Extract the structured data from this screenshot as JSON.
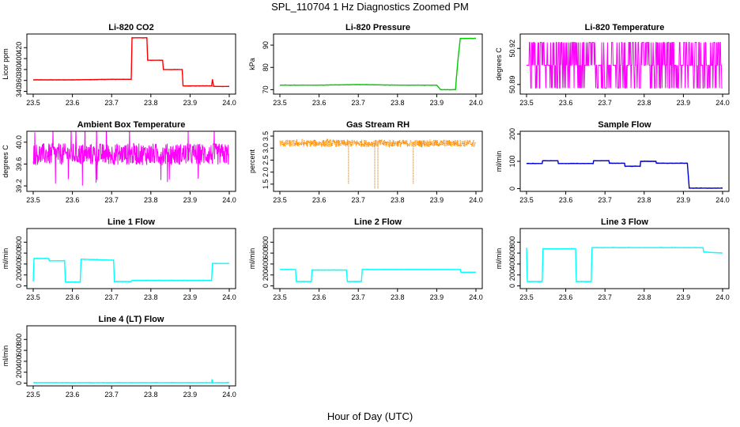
{
  "page": {
    "title": "SPL_110704  1 Hz Diagnostics Zoomed PM",
    "xlabel": "Hour of Day (UTC)"
  },
  "colors": {
    "red": "#ff0000",
    "green": "#00cc00",
    "magenta": "#ff00ff",
    "orange": "#ff8c00",
    "blue": "#0000cc",
    "cyan": "#00ffff"
  },
  "chart_data": [
    {
      "id": "co2",
      "type": "line",
      "title": "Li-820 CO2",
      "ylabel": "Licor ppm",
      "color": "red",
      "xlim": [
        23.5,
        24.0
      ],
      "ylim": [
        335,
        445
      ],
      "yticks": [
        "340",
        "360",
        "380",
        "400",
        "420"
      ],
      "ytick_values": [
        340,
        360,
        380,
        400,
        420
      ],
      "xticks": [
        "23.5",
        "23.6",
        "23.7",
        "23.8",
        "23.9",
        "24.0"
      ],
      "series": [
        {
          "x": [
            23.5,
            23.6,
            23.7,
            23.75,
            23.752,
            23.79,
            23.792,
            23.83,
            23.832,
            23.88,
            23.882,
            23.955,
            23.957,
            23.96,
            23.962,
            24.0
          ],
          "y": [
            361,
            361,
            362,
            362,
            438,
            438,
            397,
            397,
            380,
            380,
            350,
            350,
            362,
            350,
            349,
            349
          ]
        }
      ]
    },
    {
      "id": "pressure",
      "type": "line",
      "title": "Li-820 Pressure",
      "ylabel": "kPa",
      "color": "green",
      "xlim": [
        23.5,
        24.0
      ],
      "ylim": [
        68,
        95
      ],
      "yticks": [
        "70",
        "80",
        "90"
      ],
      "ytick_values": [
        70,
        80,
        90
      ],
      "xticks": [
        "23.5",
        "23.6",
        "23.7",
        "23.8",
        "23.9",
        "24.0"
      ],
      "series": [
        {
          "x": [
            23.5,
            23.6,
            23.7,
            23.8,
            23.9,
            23.91,
            23.912,
            23.948,
            23.95,
            23.955,
            23.96,
            23.97,
            24.0
          ],
          "y": [
            72,
            72,
            72.3,
            72,
            72,
            70,
            70,
            70,
            75,
            85,
            93,
            93,
            93
          ]
        }
      ]
    },
    {
      "id": "licor_temp",
      "type": "line",
      "title": "Li-820 Temperature",
      "ylabel": "degrees C",
      "color": "magenta",
      "xlim": [
        23.5,
        24.0
      ],
      "ylim": [
        50.882,
        50.932
      ],
      "yticks": [
        "50.89",
        "50.92"
      ],
      "ytick_values": [
        50.89,
        50.92
      ],
      "xticks": [
        "23.5",
        "23.6",
        "23.7",
        "23.8",
        "23.9",
        "24.0"
      ],
      "levels": [
        50.887,
        50.906,
        50.925
      ]
    },
    {
      "id": "ambient_temp",
      "type": "line",
      "title": "Ambient Box Temperature",
      "ylabel": "degrees C",
      "color": "magenta",
      "xlim": [
        23.5,
        24.0
      ],
      "ylim": [
        39.1,
        40.2
      ],
      "yticks": [
        "39.2",
        "39.6",
        "40.0"
      ],
      "ytick_values": [
        39.2,
        39.6,
        40.0
      ],
      "xticks": [
        "23.5",
        "23.6",
        "23.7",
        "23.8",
        "23.9",
        "24.0"
      ],
      "center": 39.78,
      "noise": 0.2
    },
    {
      "id": "rh",
      "type": "scatter",
      "title": "Gas Stream RH",
      "ylabel": "percent",
      "color": "orange",
      "xlim": [
        23.5,
        24.0
      ],
      "ylim": [
        1.2,
        3.7
      ],
      "yticks": [
        "1.5",
        "2.0",
        "2.5",
        "3.0",
        "3.5"
      ],
      "ytick_values": [
        1.5,
        2.0,
        2.5,
        3.0,
        3.5
      ],
      "xticks": [
        "23.5",
        "23.6",
        "23.7",
        "23.8",
        "23.9",
        "24.0"
      ],
      "center": 3.2,
      "noise": 0.15,
      "dips": [
        {
          "x": 23.675,
          "y": 1.5
        },
        {
          "x": 23.742,
          "y": 1.3
        },
        {
          "x": 23.75,
          "y": 1.3
        },
        {
          "x": 23.84,
          "y": 1.5
        }
      ]
    },
    {
      "id": "sample_flow",
      "type": "line",
      "title": "Sample Flow",
      "ylabel": "ml/min",
      "color": "blue",
      "xlim": [
        23.5,
        24.0
      ],
      "ylim": [
        -10,
        210
      ],
      "yticks": [
        "0",
        "100",
        "200"
      ],
      "ytick_values": [
        0,
        100,
        200
      ],
      "xticks": [
        "23.5",
        "23.6",
        "23.7",
        "23.8",
        "23.9",
        "24.0"
      ],
      "series": [
        {
          "x": [
            23.5,
            23.54,
            23.541,
            23.58,
            23.581,
            23.67,
            23.671,
            23.71,
            23.711,
            23.75,
            23.751,
            23.79,
            23.791,
            23.83,
            23.831,
            23.91,
            23.915,
            24.0
          ],
          "y": [
            92,
            92,
            102,
            102,
            92,
            92,
            102,
            102,
            93,
            93,
            82,
            82,
            100,
            100,
            93,
            93,
            2,
            2
          ]
        }
      ]
    },
    {
      "id": "line1",
      "type": "line",
      "title": "Line 1 Flow",
      "ylabel": "ml/min",
      "color": "cyan",
      "xlim": [
        23.5,
        24.0
      ],
      "ylim": [
        -50,
        1050
      ],
      "yticks": [
        "0",
        "200",
        "400",
        "600",
        "800"
      ],
      "ytick_values": [
        0,
        200,
        400,
        600,
        800
      ],
      "xticks": [
        "23.5",
        "23.6",
        "23.7",
        "23.8",
        "23.9",
        "24.0"
      ],
      "series": [
        {
          "x": [
            23.5,
            23.502,
            23.54,
            23.541,
            23.58,
            23.582,
            23.62,
            23.622,
            23.705,
            23.707,
            23.75,
            23.752,
            23.955,
            23.957,
            24.0
          ],
          "y": [
            80,
            500,
            500,
            460,
            460,
            70,
            70,
            490,
            470,
            80,
            80,
            100,
            100,
            410,
            410
          ]
        }
      ]
    },
    {
      "id": "line2",
      "type": "line",
      "title": "Line 2 Flow",
      "ylabel": "ml/min",
      "color": "cyan",
      "xlim": [
        23.5,
        24.0
      ],
      "ylim": [
        -50,
        1050
      ],
      "yticks": [
        "0",
        "200",
        "400",
        "600",
        "800"
      ],
      "ytick_values": [
        0,
        200,
        400,
        600,
        800
      ],
      "xticks": [
        "23.5",
        "23.6",
        "23.7",
        "23.8",
        "23.9",
        "24.0"
      ],
      "series": [
        {
          "x": [
            23.5,
            23.54,
            23.542,
            23.58,
            23.582,
            23.67,
            23.672,
            23.708,
            23.71,
            23.96,
            23.962,
            24.0
          ],
          "y": [
            300,
            300,
            80,
            80,
            290,
            290,
            80,
            80,
            300,
            300,
            250,
            250
          ]
        }
      ]
    },
    {
      "id": "line3",
      "type": "line",
      "title": "Line 3 Flow",
      "ylabel": "ml/min",
      "color": "cyan",
      "xlim": [
        23.5,
        24.0
      ],
      "ylim": [
        -50,
        1050
      ],
      "yticks": [
        "0",
        "200",
        "400",
        "600",
        "800"
      ],
      "ytick_values": [
        0,
        200,
        400,
        600,
        800
      ],
      "xticks": [
        "23.5",
        "23.6",
        "23.7",
        "23.8",
        "23.9",
        "24.0"
      ],
      "series": [
        {
          "x": [
            23.5,
            23.502,
            23.504,
            23.54,
            23.542,
            23.625,
            23.627,
            23.665,
            23.667,
            23.95,
            23.952,
            24.0
          ],
          "y": [
            700,
            80,
            80,
            80,
            680,
            680,
            80,
            80,
            700,
            700,
            620,
            600
          ]
        }
      ]
    },
    {
      "id": "line4",
      "type": "line",
      "title": "Line 4 (LT) Flow",
      "ylabel": "ml/min",
      "color": "cyan",
      "xlim": [
        23.5,
        24.0
      ],
      "ylim": [
        -50,
        1050
      ],
      "yticks": [
        "0",
        "200",
        "400",
        "600",
        "800"
      ],
      "ytick_values": [
        0,
        200,
        400,
        600,
        800
      ],
      "xticks": [
        "23.5",
        "23.6",
        "23.7",
        "23.8",
        "23.9",
        "24.0"
      ],
      "series": [
        {
          "x": [
            23.5,
            23.955,
            23.956,
            23.958,
            23.96,
            24.0
          ],
          "y": [
            10,
            10,
            70,
            10,
            10,
            10
          ]
        }
      ]
    }
  ]
}
